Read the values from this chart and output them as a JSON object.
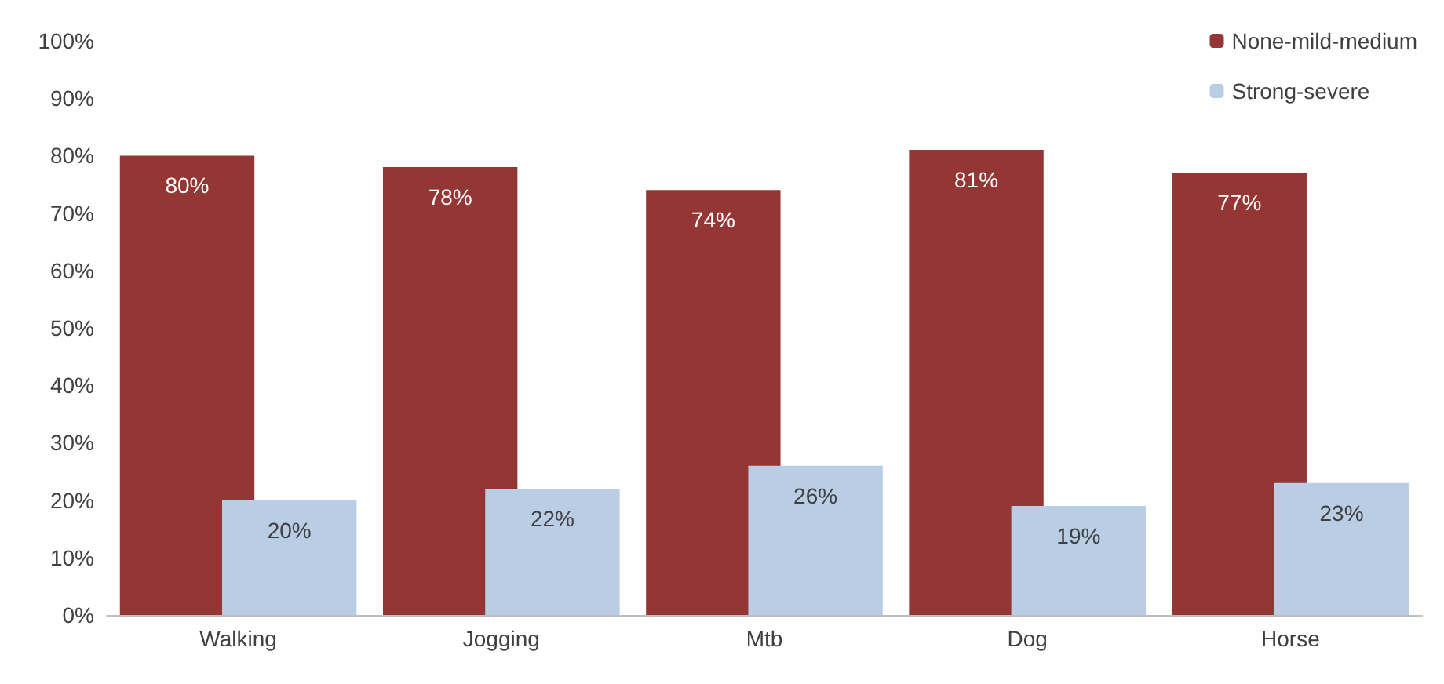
{
  "chart_data": {
    "type": "bar",
    "categories": [
      "Walking",
      "Jogging",
      "Mtb",
      "Dog",
      "Horse"
    ],
    "series": [
      {
        "name": "None-mild-medium",
        "color": "#943634",
        "values": [
          80,
          78,
          74,
          81,
          77
        ],
        "value_labels": [
          "80%",
          "78%",
          "74%",
          "81%",
          "77%"
        ]
      },
      {
        "name": "Strong-severe",
        "color": "#b9cde5",
        "values": [
          20,
          22,
          26,
          19,
          23
        ],
        "value_labels": [
          "20%",
          "22%",
          "26%",
          "19%",
          "23%"
        ]
      }
    ],
    "ylim": [
      0,
      100
    ],
    "yticks": [
      {
        "value": 0,
        "label": "0%"
      },
      {
        "value": 10,
        "label": "10%"
      },
      {
        "value": 20,
        "label": "20%"
      },
      {
        "value": 30,
        "label": "30%"
      },
      {
        "value": 40,
        "label": "40%"
      },
      {
        "value": 50,
        "label": "50%"
      },
      {
        "value": 60,
        "label": "60%"
      },
      {
        "value": 70,
        "label": "70%"
      },
      {
        "value": 80,
        "label": "80%"
      },
      {
        "value": 90,
        "label": "90%"
      },
      {
        "value": 100,
        "label": "100%"
      }
    ],
    "legend": "top right"
  }
}
